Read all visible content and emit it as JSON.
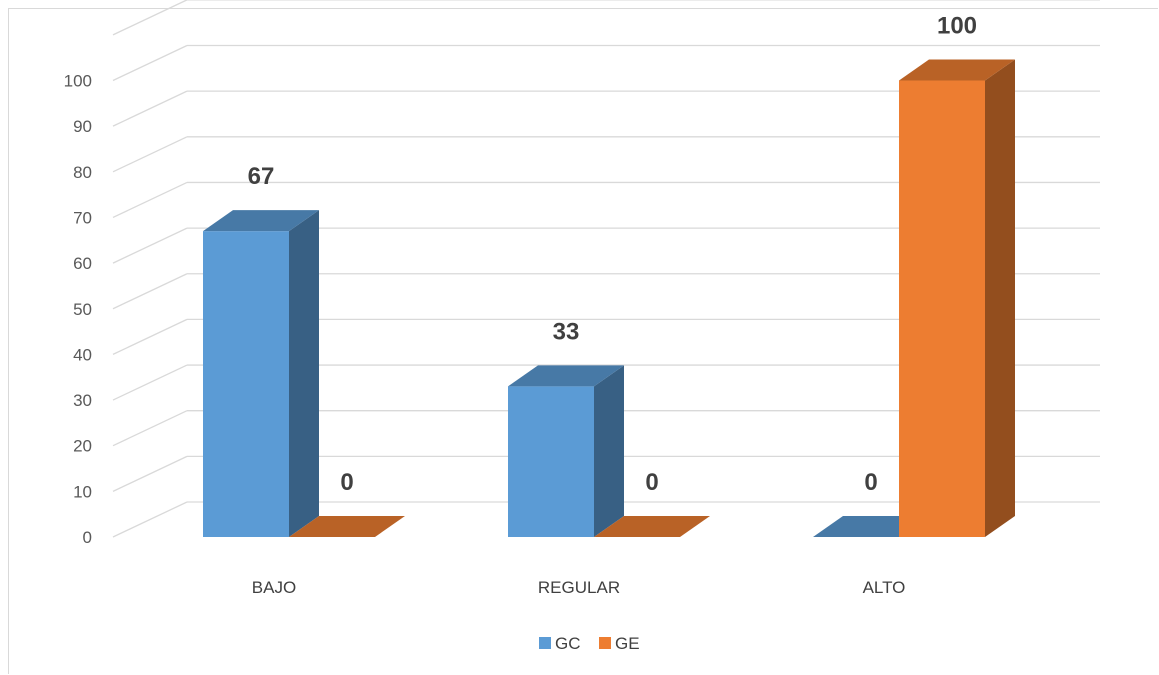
{
  "chart_data": {
    "type": "bar",
    "style": "3d-clustered-column",
    "categories": [
      "BAJO",
      "REGULAR",
      "ALTO"
    ],
    "series": [
      {
        "name": "GC",
        "values": [
          67,
          33,
          0
        ],
        "color": "#5b9bd5"
      },
      {
        "name": "GE",
        "values": [
          0,
          0,
          100
        ],
        "color": "#ed7d31"
      }
    ],
    "data_labels": [
      [
        "67",
        "33",
        "0"
      ],
      [
        "0",
        "0",
        "100"
      ]
    ],
    "title": "",
    "xlabel": "",
    "ylabel": "",
    "ylim": [
      0,
      100
    ],
    "yticks": [
      "0",
      "10",
      "20",
      "30",
      "40",
      "50",
      "60",
      "70",
      "80",
      "90",
      "100"
    ],
    "grid": true,
    "legend_position": "bottom"
  }
}
